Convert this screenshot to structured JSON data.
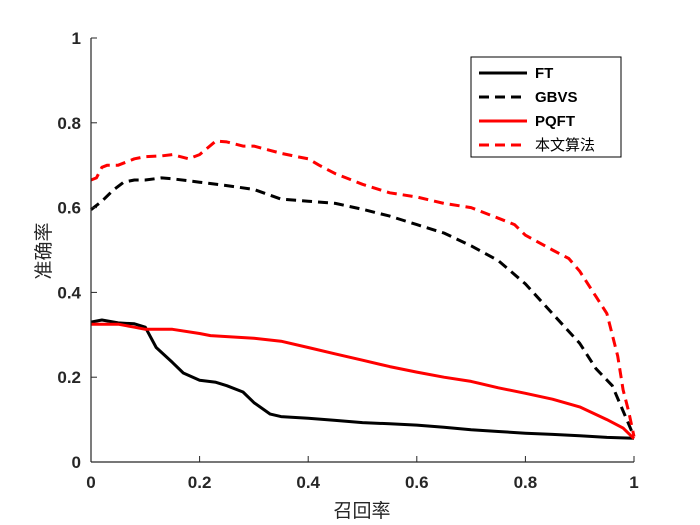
{
  "chart_data": {
    "type": "line",
    "title": "",
    "xlabel": "召回率",
    "ylabel": "准确率",
    "xlim": [
      0,
      1
    ],
    "ylim": [
      0,
      1
    ],
    "xticks": [
      0,
      0.2,
      0.4,
      0.6,
      0.8,
      1
    ],
    "yticks": [
      0,
      0.2,
      0.4,
      0.6,
      0.8,
      1
    ],
    "xtick_labels": [
      "0",
      "0.2",
      "0.4",
      "0.6",
      "0.8",
      "1"
    ],
    "ytick_labels": [
      "0",
      "0.2",
      "0.4",
      "0.6",
      "0.8",
      "1"
    ],
    "grid": false,
    "legend_position": "top-right",
    "series": [
      {
        "name": "FT",
        "color": "#000000",
        "dash": "solid",
        "points": [
          [
            0,
            0.33
          ],
          [
            0.02,
            0.335
          ],
          [
            0.05,
            0.328
          ],
          [
            0.08,
            0.326
          ],
          [
            0.1,
            0.318
          ],
          [
            0.12,
            0.27
          ],
          [
            0.15,
            0.235
          ],
          [
            0.17,
            0.21
          ],
          [
            0.2,
            0.193
          ],
          [
            0.23,
            0.188
          ],
          [
            0.25,
            0.18
          ],
          [
            0.28,
            0.165
          ],
          [
            0.3,
            0.14
          ],
          [
            0.33,
            0.113
          ],
          [
            0.35,
            0.107
          ],
          [
            0.4,
            0.103
          ],
          [
            0.45,
            0.098
          ],
          [
            0.5,
            0.093
          ],
          [
            0.55,
            0.09
          ],
          [
            0.6,
            0.087
          ],
          [
            0.65,
            0.082
          ],
          [
            0.7,
            0.076
          ],
          [
            0.75,
            0.072
          ],
          [
            0.8,
            0.068
          ],
          [
            0.85,
            0.065
          ],
          [
            0.9,
            0.062
          ],
          [
            0.95,
            0.058
          ],
          [
            1,
            0.056
          ]
        ]
      },
      {
        "name": "GBVS",
        "color": "#000000",
        "dash": "dashed",
        "points": [
          [
            0,
            0.595
          ],
          [
            0.02,
            0.615
          ],
          [
            0.04,
            0.64
          ],
          [
            0.06,
            0.66
          ],
          [
            0.08,
            0.665
          ],
          [
            0.1,
            0.665
          ],
          [
            0.13,
            0.67
          ],
          [
            0.15,
            0.668
          ],
          [
            0.2,
            0.66
          ],
          [
            0.25,
            0.652
          ],
          [
            0.3,
            0.643
          ],
          [
            0.35,
            0.62
          ],
          [
            0.4,
            0.615
          ],
          [
            0.45,
            0.61
          ],
          [
            0.5,
            0.596
          ],
          [
            0.55,
            0.58
          ],
          [
            0.6,
            0.56
          ],
          [
            0.65,
            0.54
          ],
          [
            0.7,
            0.51
          ],
          [
            0.75,
            0.475
          ],
          [
            0.8,
            0.42
          ],
          [
            0.85,
            0.35
          ],
          [
            0.9,
            0.28
          ],
          [
            0.93,
            0.22
          ],
          [
            0.96,
            0.18
          ],
          [
            1,
            0.06
          ]
        ]
      },
      {
        "name": "PQFT",
        "color": "#ff0000",
        "dash": "solid",
        "points": [
          [
            0,
            0.325
          ],
          [
            0.05,
            0.325
          ],
          [
            0.08,
            0.318
          ],
          [
            0.1,
            0.313
          ],
          [
            0.15,
            0.313
          ],
          [
            0.2,
            0.303
          ],
          [
            0.22,
            0.298
          ],
          [
            0.3,
            0.292
          ],
          [
            0.35,
            0.285
          ],
          [
            0.4,
            0.27
          ],
          [
            0.45,
            0.255
          ],
          [
            0.5,
            0.24
          ],
          [
            0.55,
            0.225
          ],
          [
            0.6,
            0.212
          ],
          [
            0.65,
            0.2
          ],
          [
            0.7,
            0.19
          ],
          [
            0.75,
            0.175
          ],
          [
            0.8,
            0.162
          ],
          [
            0.85,
            0.148
          ],
          [
            0.9,
            0.13
          ],
          [
            0.95,
            0.1
          ],
          [
            0.98,
            0.08
          ],
          [
            1,
            0.055
          ]
        ]
      },
      {
        "name": "本文算法",
        "color": "#ff0000",
        "dash": "dashed",
        "points": [
          [
            0,
            0.665
          ],
          [
            0.01,
            0.67
          ],
          [
            0.02,
            0.695
          ],
          [
            0.03,
            0.7
          ],
          [
            0.05,
            0.7
          ],
          [
            0.08,
            0.715
          ],
          [
            0.1,
            0.72
          ],
          [
            0.13,
            0.722
          ],
          [
            0.15,
            0.725
          ],
          [
            0.18,
            0.715
          ],
          [
            0.2,
            0.725
          ],
          [
            0.23,
            0.757
          ],
          [
            0.25,
            0.755
          ],
          [
            0.28,
            0.745
          ],
          [
            0.3,
            0.745
          ],
          [
            0.33,
            0.735
          ],
          [
            0.35,
            0.728
          ],
          [
            0.38,
            0.72
          ],
          [
            0.4,
            0.715
          ],
          [
            0.42,
            0.7
          ],
          [
            0.45,
            0.68
          ],
          [
            0.48,
            0.665
          ],
          [
            0.5,
            0.655
          ],
          [
            0.55,
            0.635
          ],
          [
            0.6,
            0.625
          ],
          [
            0.65,
            0.61
          ],
          [
            0.7,
            0.6
          ],
          [
            0.75,
            0.575
          ],
          [
            0.78,
            0.56
          ],
          [
            0.8,
            0.535
          ],
          [
            0.85,
            0.5
          ],
          [
            0.88,
            0.48
          ],
          [
            0.9,
            0.45
          ],
          [
            0.93,
            0.39
          ],
          [
            0.95,
            0.35
          ],
          [
            0.97,
            0.25
          ],
          [
            0.98,
            0.17
          ],
          [
            0.99,
            0.12
          ],
          [
            1,
            0.06
          ]
        ]
      }
    ]
  }
}
